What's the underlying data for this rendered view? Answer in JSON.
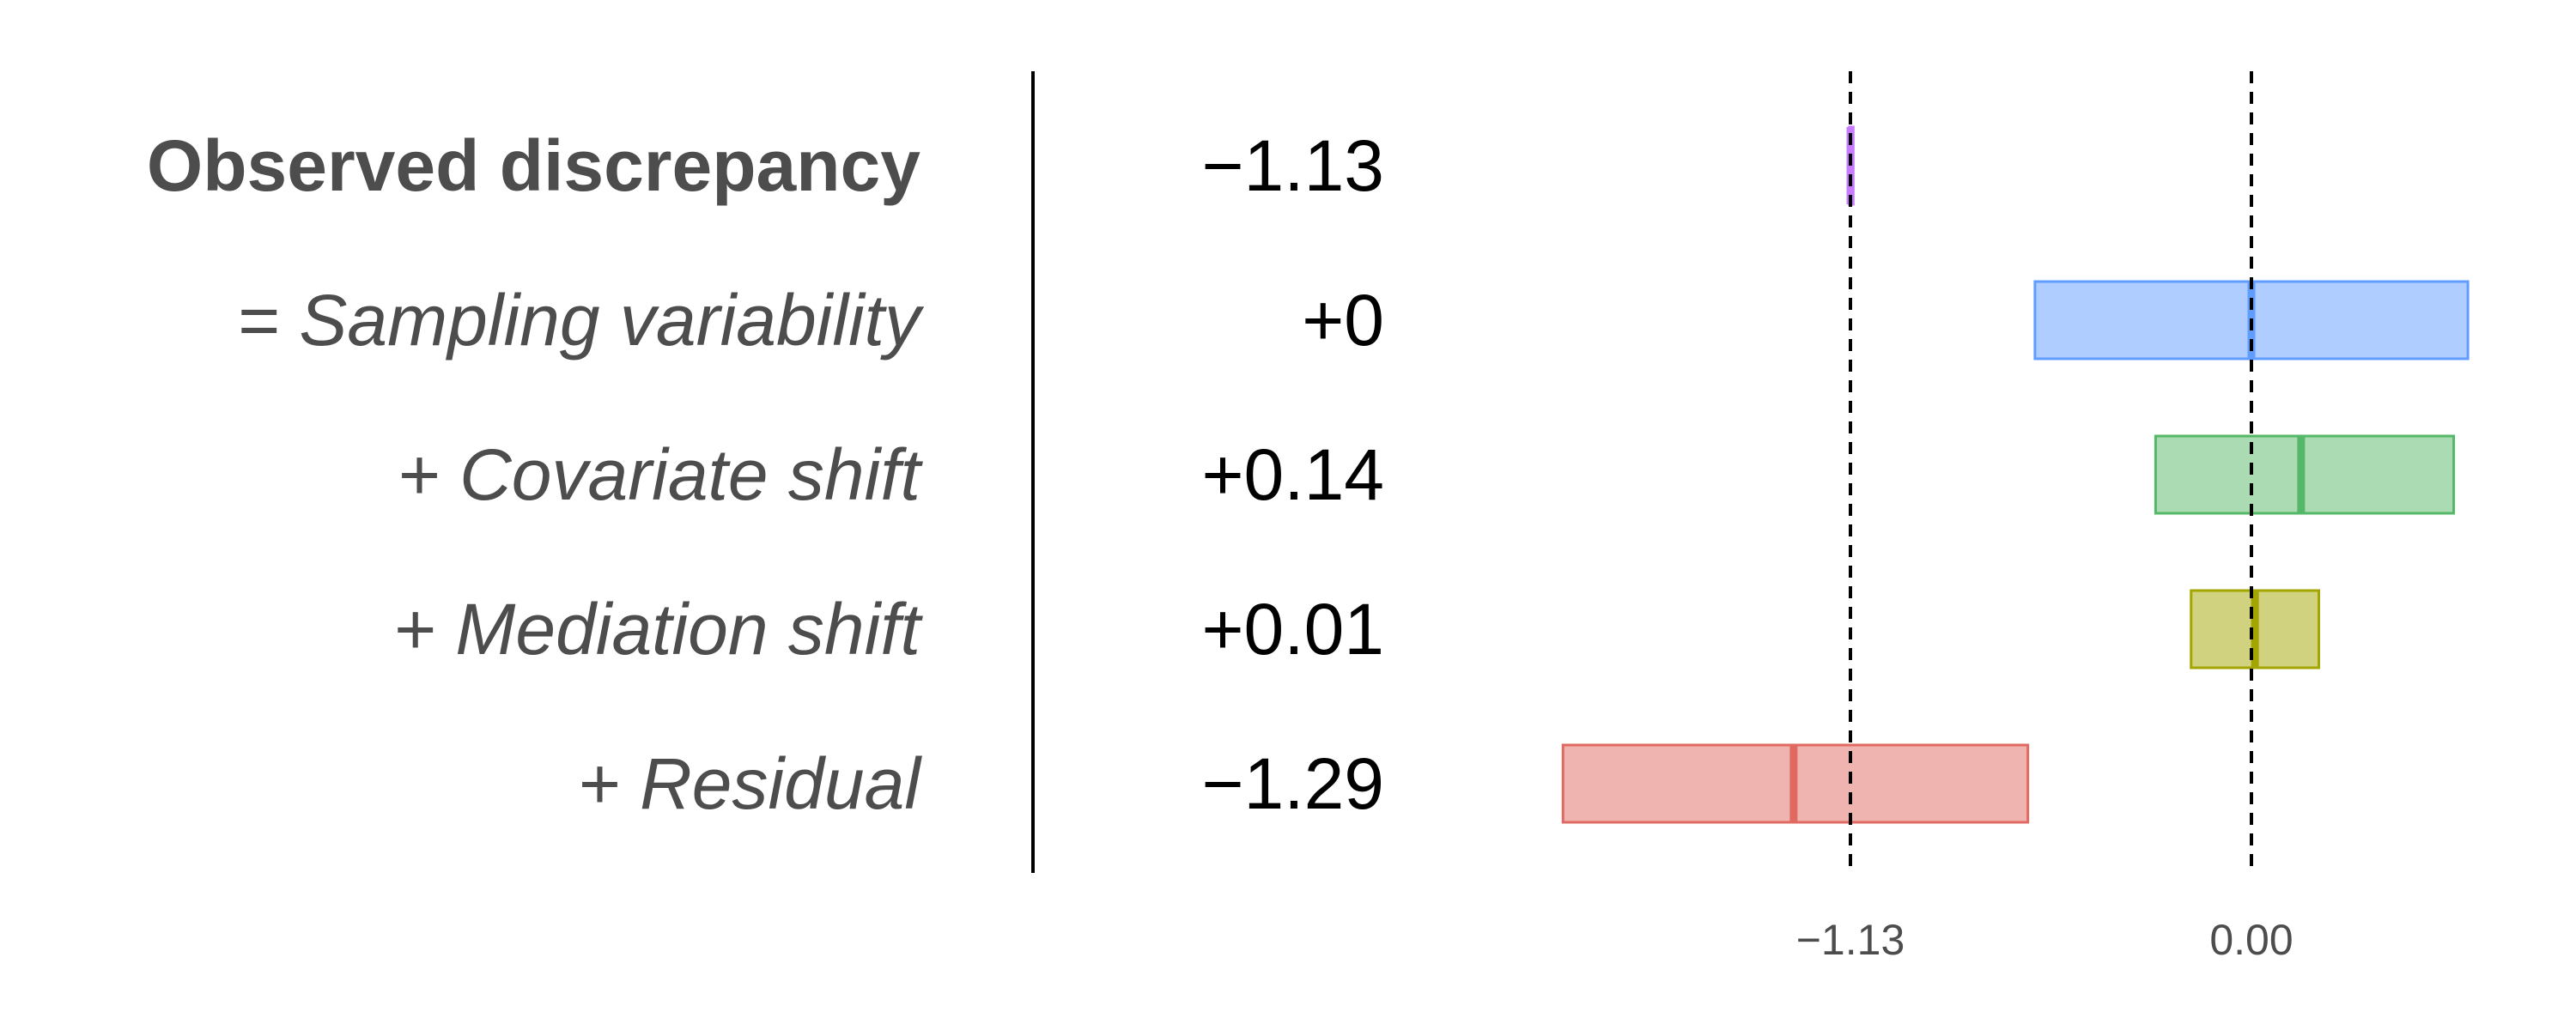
{
  "chart_data": {
    "type": "bar",
    "rows": [
      {
        "label": "Observed discrepancy",
        "value_text": "−1.13",
        "estimate": -1.13,
        "ci": [
          -1.133,
          -1.122
        ],
        "color": "#c77cff",
        "style": "bold"
      },
      {
        "label": "= Sampling variability",
        "value_text": "+0",
        "estimate": 0.0,
        "ci": [
          -0.61,
          0.61
        ],
        "color": "#619cff",
        "style": "italic"
      },
      {
        "label": "+ Covariate shift",
        "value_text": "+0.14",
        "estimate": 0.14,
        "ci": [
          -0.27,
          0.57
        ],
        "color": "#55b868",
        "style": "italic"
      },
      {
        "label": "+ Mediation shift",
        "value_text": "+0.01",
        "estimate": 0.01,
        "ci": [
          -0.17,
          0.19
        ],
        "color": "#a3a500",
        "style": "italic"
      },
      {
        "label": "+ Residual",
        "value_text": "−1.29",
        "estimate": -1.29,
        "ci": [
          -1.94,
          -0.63
        ],
        "color": "#e06a62",
        "style": "italic"
      }
    ],
    "reference_lines": [
      -1.13,
      0.0
    ],
    "x_ticks": [
      {
        "value": -1.13,
        "label": "−1.13"
      },
      {
        "value": 0.0,
        "label": "0.00"
      }
    ],
    "xlim": [
      -2.0,
      0.6
    ]
  }
}
